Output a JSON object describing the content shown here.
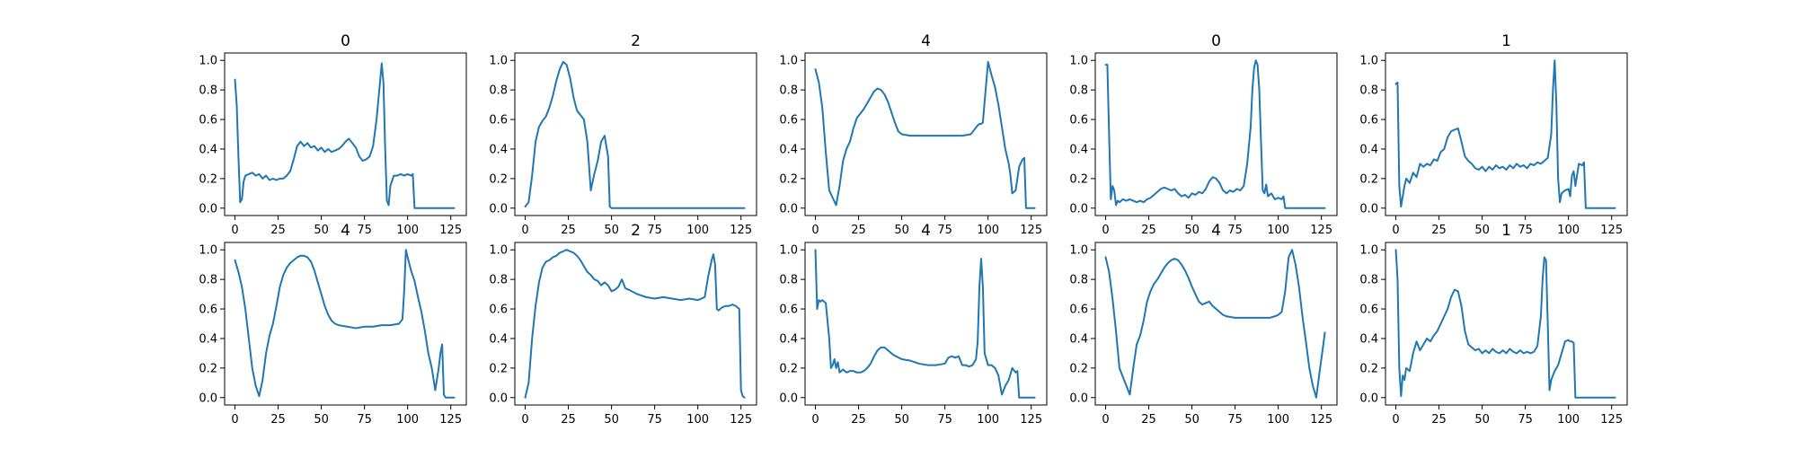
{
  "figure": {
    "line_color": "#1f77b4",
    "background": "#ffffff"
  },
  "chart_data": [
    {
      "type": "line",
      "title": "0",
      "xlim": [
        -6,
        134
      ],
      "ylim": [
        -0.05,
        1.05
      ],
      "xticks": [
        0,
        25,
        50,
        75,
        100,
        125
      ],
      "yticks": [
        0.0,
        0.2,
        0.4,
        0.6,
        0.8,
        1.0
      ],
      "x": [
        0,
        1,
        2,
        3,
        4,
        5,
        6,
        8,
        10,
        12,
        14,
        16,
        18,
        20,
        22,
        24,
        26,
        28,
        30,
        32,
        34,
        36,
        38,
        40,
        42,
        44,
        46,
        48,
        50,
        52,
        54,
        56,
        58,
        60,
        62,
        64,
        66,
        68,
        70,
        72,
        74,
        76,
        78,
        80,
        82,
        84,
        85,
        86,
        87,
        88,
        89,
        90,
        92,
        94,
        96,
        98,
        100,
        102,
        103,
        104,
        110,
        120,
        127
      ],
      "y": [
        0.87,
        0.7,
        0.35,
        0.04,
        0.06,
        0.18,
        0.22,
        0.23,
        0.24,
        0.22,
        0.23,
        0.2,
        0.22,
        0.19,
        0.2,
        0.19,
        0.2,
        0.2,
        0.22,
        0.25,
        0.33,
        0.42,
        0.45,
        0.42,
        0.44,
        0.41,
        0.42,
        0.39,
        0.41,
        0.38,
        0.4,
        0.38,
        0.39,
        0.4,
        0.42,
        0.45,
        0.47,
        0.44,
        0.41,
        0.35,
        0.32,
        0.33,
        0.35,
        0.42,
        0.6,
        0.85,
        0.98,
        0.85,
        0.4,
        0.05,
        0.02,
        0.15,
        0.22,
        0.22,
        0.23,
        0.22,
        0.23,
        0.22,
        0.23,
        0.0,
        0.0,
        0.0,
        0.0
      ]
    },
    {
      "type": "line",
      "title": "2",
      "xlim": [
        -6,
        134
      ],
      "ylim": [
        -0.05,
        1.05
      ],
      "xticks": [
        0,
        25,
        50,
        75,
        100,
        125
      ],
      "yticks": [
        0.0,
        0.2,
        0.4,
        0.6,
        0.8,
        1.0
      ],
      "x": [
        0,
        2,
        4,
        6,
        8,
        10,
        12,
        14,
        16,
        18,
        20,
        22,
        24,
        26,
        28,
        30,
        32,
        34,
        36,
        38,
        40,
        42,
        44,
        46,
        48,
        49,
        50,
        60,
        80,
        100,
        127
      ],
      "y": [
        0.01,
        0.04,
        0.22,
        0.45,
        0.55,
        0.59,
        0.62,
        0.68,
        0.76,
        0.86,
        0.94,
        0.99,
        0.97,
        0.88,
        0.75,
        0.66,
        0.63,
        0.6,
        0.45,
        0.12,
        0.23,
        0.32,
        0.45,
        0.49,
        0.35,
        0.01,
        0.0,
        0.0,
        0.0,
        0.0,
        0.0
      ]
    },
    {
      "type": "line",
      "title": "4",
      "xlim": [
        -6,
        134
      ],
      "ylim": [
        -0.05,
        1.05
      ],
      "xticks": [
        0,
        25,
        50,
        75,
        100,
        125
      ],
      "yticks": [
        0.0,
        0.2,
        0.4,
        0.6,
        0.8,
        1.0
      ],
      "x": [
        0,
        2,
        4,
        6,
        8,
        10,
        12,
        14,
        16,
        18,
        20,
        22,
        24,
        26,
        28,
        30,
        32,
        34,
        36,
        38,
        40,
        42,
        44,
        46,
        48,
        50,
        55,
        60,
        65,
        70,
        75,
        80,
        85,
        90,
        92,
        94,
        95,
        96,
        97,
        98,
        100,
        102,
        104,
        106,
        108,
        110,
        112,
        113,
        114,
        116,
        118,
        120,
        121,
        122,
        127
      ],
      "y": [
        0.94,
        0.85,
        0.68,
        0.38,
        0.12,
        0.07,
        0.02,
        0.15,
        0.32,
        0.4,
        0.45,
        0.54,
        0.61,
        0.64,
        0.67,
        0.71,
        0.75,
        0.79,
        0.81,
        0.8,
        0.77,
        0.72,
        0.65,
        0.58,
        0.52,
        0.5,
        0.49,
        0.49,
        0.49,
        0.49,
        0.49,
        0.49,
        0.49,
        0.5,
        0.53,
        0.56,
        0.57,
        0.57,
        0.58,
        0.72,
        0.99,
        0.9,
        0.82,
        0.7,
        0.55,
        0.4,
        0.3,
        0.22,
        0.1,
        0.12,
        0.28,
        0.33,
        0.34,
        0.0,
        0.0
      ]
    },
    {
      "type": "line",
      "title": "0",
      "xlim": [
        -6,
        134
      ],
      "ylim": [
        -0.05,
        1.05
      ],
      "xticks": [
        0,
        25,
        50,
        75,
        100,
        125
      ],
      "yticks": [
        0.0,
        0.2,
        0.4,
        0.6,
        0.8,
        1.0
      ],
      "x": [
        0,
        1,
        2,
        3,
        4,
        5,
        6,
        7,
        8,
        10,
        12,
        14,
        16,
        18,
        20,
        22,
        24,
        26,
        28,
        30,
        32,
        34,
        36,
        38,
        40,
        42,
        44,
        46,
        48,
        50,
        52,
        54,
        56,
        58,
        60,
        62,
        64,
        66,
        68,
        70,
        72,
        74,
        76,
        78,
        80,
        82,
        84,
        85,
        86,
        87,
        88,
        89,
        90,
        91,
        92,
        93,
        94,
        96,
        98,
        100,
        102,
        103,
        104,
        110,
        120,
        127
      ],
      "y": [
        0.97,
        0.97,
        0.5,
        0.06,
        0.15,
        0.12,
        0.02,
        0.05,
        0.04,
        0.06,
        0.05,
        0.06,
        0.05,
        0.04,
        0.05,
        0.04,
        0.06,
        0.07,
        0.09,
        0.11,
        0.13,
        0.14,
        0.13,
        0.12,
        0.13,
        0.1,
        0.08,
        0.09,
        0.07,
        0.1,
        0.09,
        0.11,
        0.1,
        0.13,
        0.18,
        0.21,
        0.2,
        0.17,
        0.12,
        0.1,
        0.12,
        0.11,
        0.13,
        0.12,
        0.15,
        0.3,
        0.55,
        0.8,
        0.95,
        1.0,
        0.97,
        0.8,
        0.45,
        0.12,
        0.1,
        0.16,
        0.08,
        0.1,
        0.06,
        0.07,
        0.06,
        0.08,
        0.0,
        0.0,
        0.0,
        0.0
      ]
    },
    {
      "type": "line",
      "title": "1",
      "xlim": [
        -6,
        134
      ],
      "ylim": [
        -0.05,
        1.05
      ],
      "xticks": [
        0,
        25,
        50,
        75,
        100,
        125
      ],
      "yticks": [
        0.0,
        0.2,
        0.4,
        0.6,
        0.8,
        1.0
      ],
      "x": [
        0,
        1,
        2,
        3,
        4,
        5,
        6,
        8,
        10,
        12,
        14,
        16,
        18,
        20,
        22,
        24,
        26,
        28,
        30,
        32,
        34,
        36,
        38,
        40,
        42,
        44,
        46,
        48,
        50,
        52,
        54,
        56,
        58,
        60,
        62,
        64,
        66,
        68,
        70,
        72,
        74,
        76,
        78,
        80,
        82,
        84,
        86,
        88,
        90,
        91,
        92,
        93,
        94,
        95,
        96,
        98,
        100,
        101,
        102,
        103,
        104,
        106,
        108,
        109,
        110,
        115,
        120,
        127
      ],
      "y": [
        0.84,
        0.85,
        0.15,
        0.01,
        0.08,
        0.15,
        0.2,
        0.17,
        0.24,
        0.21,
        0.3,
        0.28,
        0.3,
        0.29,
        0.33,
        0.32,
        0.38,
        0.4,
        0.48,
        0.52,
        0.53,
        0.54,
        0.45,
        0.35,
        0.32,
        0.3,
        0.27,
        0.26,
        0.28,
        0.25,
        0.28,
        0.26,
        0.29,
        0.27,
        0.28,
        0.26,
        0.29,
        0.27,
        0.3,
        0.28,
        0.29,
        0.27,
        0.3,
        0.29,
        0.31,
        0.3,
        0.32,
        0.34,
        0.5,
        0.8,
        1.0,
        0.7,
        0.2,
        0.04,
        0.1,
        0.12,
        0.13,
        0.08,
        0.22,
        0.25,
        0.15,
        0.3,
        0.29,
        0.31,
        0.0,
        0.0,
        0.0,
        0.0
      ]
    },
    {
      "type": "line",
      "title": "4",
      "xlim": [
        -6,
        134
      ],
      "ylim": [
        -0.05,
        1.05
      ],
      "xticks": [
        0,
        25,
        50,
        75,
        100,
        125
      ],
      "yticks": [
        0.0,
        0.2,
        0.4,
        0.6,
        0.8,
        1.0
      ],
      "x": [
        0,
        2,
        4,
        6,
        8,
        10,
        12,
        14,
        16,
        18,
        20,
        22,
        24,
        26,
        28,
        30,
        32,
        34,
        36,
        38,
        40,
        42,
        44,
        46,
        48,
        50,
        52,
        54,
        56,
        58,
        60,
        65,
        70,
        75,
        80,
        85,
        90,
        95,
        97,
        98,
        99,
        100,
        102,
        104,
        106,
        108,
        110,
        112,
        114,
        116,
        118,
        119,
        120,
        121,
        122,
        127
      ],
      "y": [
        0.93,
        0.85,
        0.75,
        0.6,
        0.4,
        0.2,
        0.08,
        0.01,
        0.12,
        0.3,
        0.42,
        0.5,
        0.62,
        0.75,
        0.83,
        0.88,
        0.91,
        0.93,
        0.95,
        0.96,
        0.96,
        0.95,
        0.92,
        0.86,
        0.78,
        0.7,
        0.62,
        0.56,
        0.52,
        0.5,
        0.49,
        0.48,
        0.47,
        0.48,
        0.48,
        0.49,
        0.49,
        0.5,
        0.53,
        0.72,
        1.0,
        0.95,
        0.86,
        0.79,
        0.68,
        0.58,
        0.45,
        0.3,
        0.2,
        0.05,
        0.2,
        0.3,
        0.36,
        0.02,
        0.0,
        0.0
      ]
    },
    {
      "type": "line",
      "title": "2",
      "xlim": [
        -6,
        134
      ],
      "ylim": [
        -0.05,
        1.05
      ],
      "xticks": [
        0,
        25,
        50,
        75,
        100,
        125
      ],
      "yticks": [
        0.0,
        0.2,
        0.4,
        0.6,
        0.8,
        1.0
      ],
      "x": [
        0,
        2,
        4,
        6,
        8,
        10,
        12,
        14,
        16,
        18,
        20,
        22,
        24,
        26,
        28,
        30,
        32,
        34,
        36,
        38,
        40,
        42,
        44,
        46,
        48,
        50,
        52,
        54,
        56,
        58,
        60,
        65,
        70,
        75,
        80,
        85,
        90,
        95,
        100,
        102,
        104,
        106,
        108,
        109,
        110,
        111,
        112,
        113,
        114,
        116,
        118,
        120,
        122,
        124,
        125,
        126,
        127
      ],
      "y": [
        0.0,
        0.1,
        0.4,
        0.62,
        0.78,
        0.88,
        0.92,
        0.93,
        0.95,
        0.96,
        0.98,
        0.99,
        1.0,
        0.99,
        0.98,
        0.96,
        0.93,
        0.89,
        0.85,
        0.83,
        0.8,
        0.79,
        0.76,
        0.78,
        0.76,
        0.72,
        0.73,
        0.75,
        0.8,
        0.74,
        0.73,
        0.7,
        0.68,
        0.67,
        0.68,
        0.67,
        0.66,
        0.67,
        0.66,
        0.67,
        0.68,
        0.82,
        0.93,
        0.97,
        0.9,
        0.6,
        0.59,
        0.6,
        0.61,
        0.62,
        0.62,
        0.63,
        0.62,
        0.6,
        0.05,
        0.01,
        0.0
      ]
    },
    {
      "type": "line",
      "title": "4",
      "xlim": [
        -6,
        134
      ],
      "ylim": [
        -0.05,
        1.05
      ],
      "xticks": [
        0,
        25,
        50,
        75,
        100,
        125
      ],
      "yticks": [
        0.0,
        0.2,
        0.4,
        0.6,
        0.8,
        1.0
      ],
      "x": [
        0,
        1,
        2,
        3,
        4,
        6,
        8,
        9,
        10,
        11,
        12,
        13,
        14,
        16,
        18,
        20,
        22,
        24,
        26,
        28,
        30,
        32,
        34,
        36,
        38,
        40,
        42,
        45,
        50,
        55,
        60,
        65,
        70,
        75,
        77,
        79,
        81,
        83,
        85,
        87,
        89,
        91,
        93,
        94,
        95,
        96,
        97,
        98,
        100,
        102,
        104,
        106,
        108,
        110,
        112,
        114,
        116,
        117,
        118,
        120,
        127
      ],
      "y": [
        1.0,
        0.6,
        0.66,
        0.65,
        0.66,
        0.64,
        0.4,
        0.2,
        0.22,
        0.26,
        0.2,
        0.24,
        0.17,
        0.19,
        0.17,
        0.18,
        0.18,
        0.17,
        0.17,
        0.18,
        0.2,
        0.23,
        0.28,
        0.32,
        0.34,
        0.34,
        0.32,
        0.29,
        0.26,
        0.25,
        0.23,
        0.22,
        0.22,
        0.23,
        0.27,
        0.28,
        0.27,
        0.28,
        0.22,
        0.22,
        0.21,
        0.22,
        0.26,
        0.38,
        0.75,
        0.94,
        0.75,
        0.3,
        0.22,
        0.22,
        0.2,
        0.15,
        0.02,
        0.08,
        0.12,
        0.2,
        0.17,
        0.18,
        0.0,
        0.0,
        0.0
      ]
    },
    {
      "type": "line",
      "title": "4",
      "xlim": [
        -6,
        134
      ],
      "ylim": [
        -0.05,
        1.05
      ],
      "xticks": [
        0,
        25,
        50,
        75,
        100,
        125
      ],
      "yticks": [
        0.0,
        0.2,
        0.4,
        0.6,
        0.8,
        1.0
      ],
      "x": [
        0,
        2,
        4,
        6,
        8,
        10,
        12,
        14,
        16,
        18,
        20,
        22,
        24,
        26,
        28,
        30,
        32,
        34,
        36,
        38,
        40,
        42,
        44,
        46,
        48,
        50,
        52,
        54,
        56,
        58,
        60,
        62,
        64,
        66,
        68,
        70,
        75,
        80,
        85,
        90,
        95,
        98,
        100,
        102,
        104,
        106,
        108,
        110,
        112,
        114,
        116,
        118,
        120,
        122,
        124,
        126,
        127
      ],
      "y": [
        0.95,
        0.85,
        0.67,
        0.45,
        0.2,
        0.14,
        0.08,
        0.02,
        0.2,
        0.36,
        0.42,
        0.52,
        0.65,
        0.72,
        0.77,
        0.8,
        0.84,
        0.88,
        0.91,
        0.93,
        0.94,
        0.93,
        0.9,
        0.86,
        0.81,
        0.75,
        0.7,
        0.65,
        0.63,
        0.64,
        0.65,
        0.62,
        0.6,
        0.58,
        0.56,
        0.55,
        0.54,
        0.54,
        0.54,
        0.54,
        0.54,
        0.55,
        0.56,
        0.58,
        0.72,
        0.95,
        1.0,
        0.9,
        0.75,
        0.55,
        0.38,
        0.2,
        0.08,
        0.0,
        0.18,
        0.35,
        0.44
      ]
    },
    {
      "type": "line",
      "title": "1",
      "xlim": [
        -6,
        134
      ],
      "ylim": [
        -0.05,
        1.05
      ],
      "xticks": [
        0,
        25,
        50,
        75,
        100,
        125
      ],
      "yticks": [
        0.0,
        0.2,
        0.4,
        0.6,
        0.8,
        1.0
      ],
      "x": [
        0,
        1,
        2,
        3,
        4,
        5,
        6,
        8,
        10,
        12,
        14,
        16,
        18,
        20,
        22,
        24,
        26,
        28,
        30,
        32,
        34,
        36,
        38,
        40,
        42,
        44,
        46,
        48,
        50,
        52,
        54,
        56,
        58,
        60,
        62,
        64,
        66,
        68,
        70,
        72,
        74,
        76,
        78,
        80,
        82,
        84,
        85,
        86,
        87,
        88,
        89,
        90,
        92,
        94,
        96,
        98,
        100,
        101,
        102,
        103,
        104,
        110,
        120,
        127
      ],
      "y": [
        1.0,
        0.8,
        0.2,
        0.01,
        0.15,
        0.12,
        0.2,
        0.18,
        0.3,
        0.38,
        0.32,
        0.36,
        0.4,
        0.38,
        0.42,
        0.45,
        0.5,
        0.55,
        0.6,
        0.68,
        0.73,
        0.72,
        0.62,
        0.45,
        0.36,
        0.34,
        0.32,
        0.33,
        0.3,
        0.32,
        0.3,
        0.33,
        0.31,
        0.3,
        0.32,
        0.3,
        0.33,
        0.31,
        0.3,
        0.32,
        0.3,
        0.31,
        0.3,
        0.31,
        0.35,
        0.55,
        0.8,
        0.95,
        0.93,
        0.5,
        0.05,
        0.12,
        0.18,
        0.22,
        0.3,
        0.38,
        0.39,
        0.38,
        0.38,
        0.37,
        0.0,
        0.0,
        0.0,
        0.0
      ]
    }
  ]
}
